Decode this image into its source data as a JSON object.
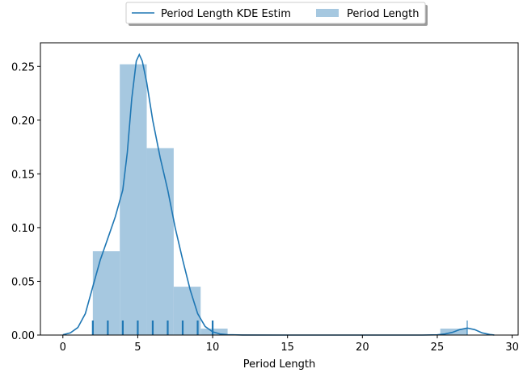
{
  "chart_data": {
    "type": "bar",
    "xlabel": "Period Length",
    "ylabel": "",
    "xlim": [
      -1.5,
      30.4
    ],
    "ylim": [
      0,
      0.272
    ],
    "xticks": [
      0,
      5,
      10,
      15,
      20,
      25,
      30
    ],
    "yticks": [
      0.0,
      0.05,
      0.1,
      0.15,
      0.2,
      0.25
    ],
    "xtick_labels": [
      "0",
      "5",
      "10",
      "15",
      "20",
      "25",
      "30"
    ],
    "ytick_labels": [
      "0.00",
      "0.05",
      "0.10",
      "0.15",
      "0.20",
      "0.25"
    ],
    "grid": false,
    "legend_position": "top-center, outside",
    "colors": {
      "line": "#1f77b4",
      "bar": "#a6c8e0"
    },
    "series": [
      {
        "name": "Period Length KDE Estim",
        "type": "line",
        "x": [
          0,
          0.5,
          1,
          1.5,
          2,
          2.5,
          3,
          3.5,
          4,
          4.3,
          4.6,
          4.9,
          5.1,
          5.3,
          5.6,
          6,
          6.5,
          7,
          7.5,
          8,
          8.5,
          9,
          9.5,
          10,
          10.5,
          11,
          12,
          15,
          20,
          24,
          25,
          25.5,
          26,
          26.5,
          27,
          27.5,
          28,
          28.5,
          28.8
        ],
        "y": [
          0.0003,
          0.002,
          0.007,
          0.02,
          0.045,
          0.07,
          0.09,
          0.11,
          0.135,
          0.17,
          0.22,
          0.255,
          0.261,
          0.255,
          0.235,
          0.2,
          0.165,
          0.135,
          0.1,
          0.07,
          0.042,
          0.02,
          0.008,
          0.003,
          0.001,
          0.0004,
          0.0001,
          0,
          0,
          0,
          0.0002,
          0.001,
          0.0025,
          0.005,
          0.0065,
          0.005,
          0.002,
          0.0005,
          0.0001
        ]
      },
      {
        "name": "Period Length",
        "type": "histogram",
        "bins": [
          {
            "x0": 2.0,
            "x1": 3.8,
            "value": 0.078
          },
          {
            "x0": 3.8,
            "x1": 5.6,
            "value": 0.252
          },
          {
            "x0": 5.6,
            "x1": 7.4,
            "value": 0.174
          },
          {
            "x0": 7.4,
            "x1": 9.2,
            "value": 0.045
          },
          {
            "x0": 9.2,
            "x1": 11.0,
            "value": 0.006
          },
          {
            "x0": 25.2,
            "x1": 27.0,
            "value": 0.006
          }
        ]
      }
    ],
    "rug": [
      2,
      3,
      4,
      5,
      6,
      7,
      8,
      9,
      10,
      27
    ]
  }
}
